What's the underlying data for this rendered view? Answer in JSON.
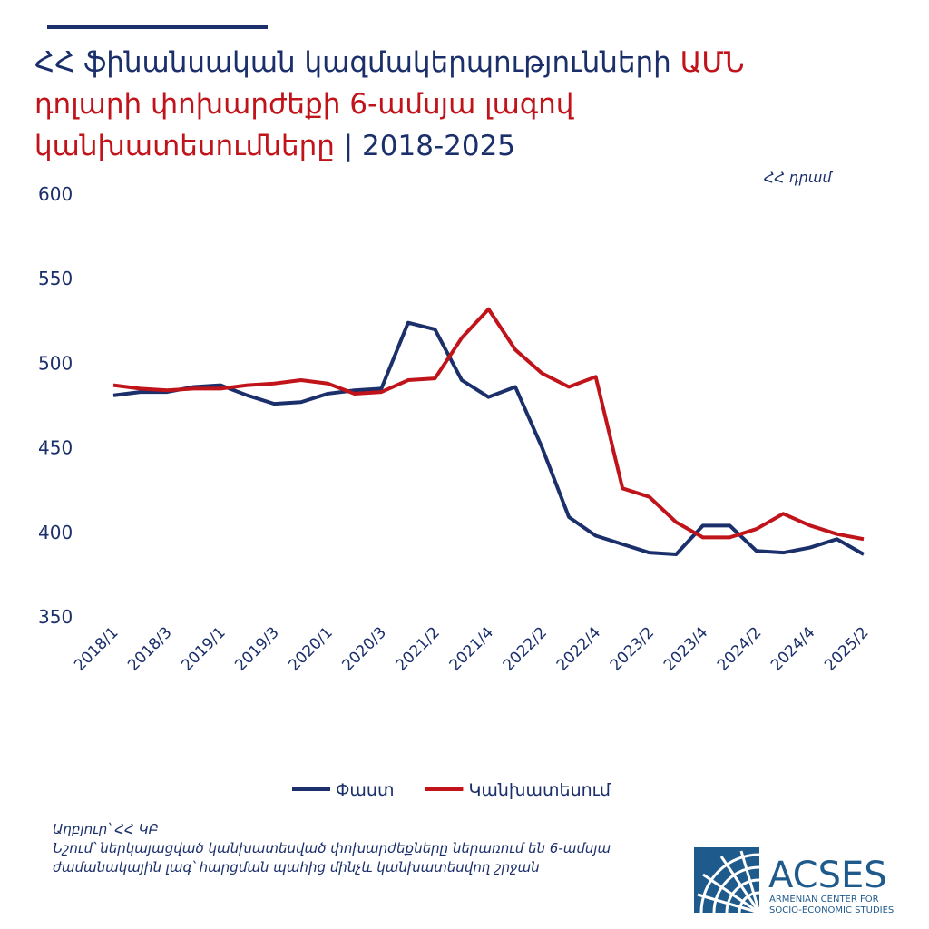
{
  "chart_data": {
    "type": "line",
    "title_lines": [
      [
        {
          "text": "ՀՀ ֆինանսական կազմակերպությունների ",
          "color": "#1b2f6b"
        },
        {
          "text": "ԱՄՆ",
          "color": "#c0131a"
        }
      ],
      [
        {
          "text": "դոլարի փոխարժեքի 6-ամսյա լագով",
          "color": "#c0131a"
        }
      ],
      [
        {
          "text": "կանխատեսումները",
          "color": "#c0131a"
        },
        {
          "text": " | 2018-2025",
          "color": "#1b2f6b"
        }
      ]
    ],
    "unit_label": "ՀՀ դրամ",
    "categories": [
      "2018/1",
      null,
      "2018/3",
      null,
      "2019/1",
      null,
      "2019/3",
      null,
      "2020/1",
      null,
      "2020/3",
      null,
      "2021/2",
      null,
      "2021/4",
      null,
      "2022/2",
      null,
      "2022/4",
      null,
      "2023/2",
      null,
      "2023/4",
      null,
      "2024/2",
      null,
      "2024/4",
      null,
      "2025/2"
    ],
    "series": [
      {
        "name": "Փաստ",
        "color": "#1b2f6b",
        "values": [
          481,
          483,
          483,
          486,
          487,
          481,
          476,
          477,
          482,
          484,
          485,
          524,
          520,
          490,
          480,
          486,
          450,
          409,
          398,
          393,
          388,
          387,
          404,
          404,
          389,
          388,
          391,
          396,
          387
        ]
      },
      {
        "name": "Կանխատեսում",
        "color": "#c0131a",
        "values": [
          487,
          485,
          484,
          485,
          485,
          487,
          488,
          490,
          488,
          482,
          483,
          490,
          491,
          515,
          532,
          508,
          494,
          486,
          492,
          426,
          421,
          406,
          397,
          397,
          402,
          411,
          404,
          399,
          396
        ]
      }
    ],
    "ylim": [
      350,
      600
    ],
    "yticks": [
      350,
      400,
      450,
      500,
      550,
      600
    ],
    "legend": "bottom",
    "source": "Աղբյուր՝ ՀՀ ԿԲ",
    "note": "Նշում՝ ներկայացված կանխատեսված փոխարժեքները ներառում են 6-ամսյա ժամանակային լագ՝ հարցման պահից մինչև կանխատեսվող շրջան",
    "logo": {
      "name": "ACSES",
      "subtitle_lines": [
        "ARMENIAN CENTER FOR",
        "SOCIO-ECONOMIC STUDIES"
      ]
    }
  }
}
